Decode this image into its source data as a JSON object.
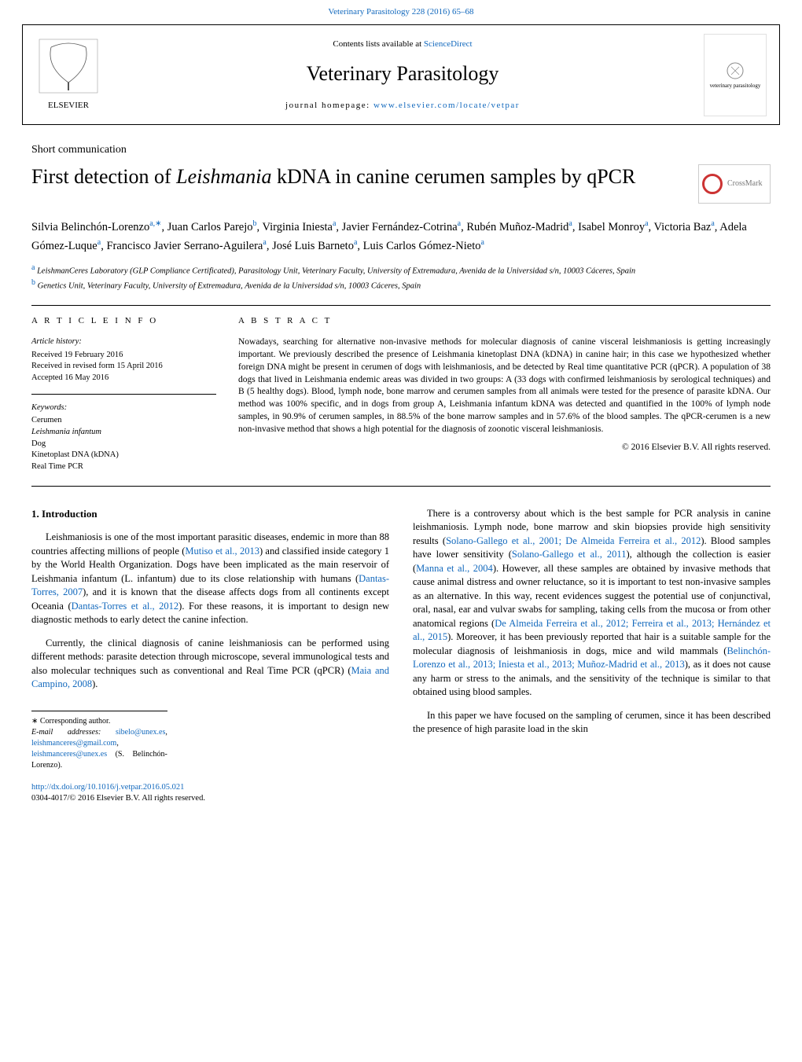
{
  "top_link": "Veterinary Parasitology 228 (2016) 65–68",
  "header": {
    "contents_line_prefix": "Contents lists available at ",
    "contents_line_link": "ScienceDirect",
    "journal_name": "Veterinary Parasitology",
    "homepage_prefix": "journal homepage: ",
    "homepage_url": "www.elsevier.com/locate/vetpar",
    "publisher_name": "ELSEVIER",
    "cover_text": "veterinary parasitology"
  },
  "article": {
    "type_label": "Short communication",
    "title_pre": "First detection of ",
    "title_italic": "Leishmania",
    "title_post": " kDNA in canine cerumen samples by qPCR",
    "crossmark_label": "CrossMark"
  },
  "authors_html": "Silvia Belinchón-Lorenzo<sup class='sup'>a,∗</sup>, Juan Carlos Parejo<sup class='sup'>b</sup>, Virginia Iniesta<sup class='sup'>a</sup>, Javier Fernández-Cotrina<sup class='sup'>a</sup>, Rubén Muñoz-Madrid<sup class='sup'>a</sup>, Isabel Monroy<sup class='sup'>a</sup>, Victoria Baz<sup class='sup'>a</sup>, Adela Gómez-Luque<sup class='sup'>a</sup>, Francisco Javier Serrano-Aguilera<sup class='sup'>a</sup>, José Luis Barneto<sup class='sup'>a</sup>, Luis Carlos Gómez-Nieto<sup class='sup'>a</sup>",
  "affiliations": {
    "a": "LeishmanCeres Laboratory (GLP Compliance Certificated), Parasitology Unit, Veterinary Faculty, University of Extremadura, Avenida de la Universidad s/n, 10003 Cáceres, Spain",
    "b": "Genetics Unit, Veterinary Faculty, University of Extremadura, Avenida de la Universidad s/n, 10003 Cáceres, Spain"
  },
  "article_info": {
    "header": "A R T I C L E   I N F O",
    "history_label": "Article history:",
    "received": "Received 19 February 2016",
    "revised": "Received in revised form 15 April 2016",
    "accepted": "Accepted 16 May 2016",
    "keywords_label": "Keywords:",
    "keywords": [
      "Cerumen",
      "Leishmania infantum",
      "Dog",
      "Kinetoplast DNA (kDNA)",
      "Real Time PCR"
    ]
  },
  "abstract": {
    "header": "A B S T R A C T",
    "text": "Nowadays, searching for alternative non-invasive methods for molecular diagnosis of canine visceral leishmaniosis is getting increasingly important. We previously described the presence of Leishmania kinetoplast DNA (kDNA) in canine hair; in this case we hypothesized whether foreign DNA might be present in cerumen of dogs with leishmaniosis, and be detected by Real time quantitative PCR (qPCR). A population of 38 dogs that lived in Leishmania endemic areas was divided in two groups: A (33 dogs with confirmed leishmaniosis by serological techniques) and B (5 healthy dogs). Blood, lymph node, bone marrow and cerumen samples from all animals were tested for the presence of parasite kDNA. Our method was 100% specific, and in dogs from group A, Leishmania infantum kDNA was detected and quantified in the 100% of lymph node samples, in 90.9% of cerumen samples, in 88.5% of the bone marrow samples and in 57.6% of the blood samples. The qPCR-cerumen is a new non-invasive method that shows a high potential for the diagnosis of zoonotic visceral leishmaniosis.",
    "copyright": "© 2016 Elsevier B.V. All rights reserved."
  },
  "intro": {
    "heading": "1. Introduction",
    "p1_pre": "Leishmaniosis is one of the most important parasitic diseases, endemic in more than 88 countries affecting millions of people (",
    "p1_cite1": "Mutiso et al., 2013",
    "p1_mid1": ") and classified inside category 1 by the World Health Organization. Dogs have been implicated as the main reservoir of Leishmania infantum (L. infantum) due to its close relationship with humans (",
    "p1_cite2": "Dantas-Torres, 2007",
    "p1_mid2": "), and it is known that the disease affects dogs from all continents except Oceania (",
    "p1_cite3": "Dantas-Torres et al., 2012",
    "p1_end": "). For these reasons, it is important to design new diagnostic methods to early detect the canine infection.",
    "p2_pre": "Currently, the clinical diagnosis of canine leishmaniosis can be performed using different methods: parasite detection through microscope, several immunological tests and also molecular techniques such as conventional and Real Time PCR (qPCR) (",
    "p2_cite1": "Maia and Campino, 2008",
    "p2_end": ")."
  },
  "right_col": {
    "p1_pre": "There is a controversy about which is the best sample for PCR analysis in canine leishmaniosis. Lymph node, bone marrow and skin biopsies provide high sensitivity results (",
    "p1_cite1": "Solano-Gallego et al., 2001; De Almeida Ferreira et al., 2012",
    "p1_mid1": "). Blood samples have lower sensitivity (",
    "p1_cite2": "Solano-Gallego et al., 2011",
    "p1_mid2": "), although the collection is easier (",
    "p1_cite3": "Manna et al., 2004",
    "p1_mid3": "). However, all these samples are obtained by invasive methods that cause animal distress and owner reluctance, so it is important to test non-invasive samples as an alternative. In this way, recent evidences suggest the potential use of conjunctival, oral, nasal, ear and vulvar swabs for sampling, taking cells from the mucosa or from other anatomical regions (",
    "p1_cite4": "De Almeida Ferreira et al., 2012; Ferreira et al., 2013; Hernández et al., 2015",
    "p1_mid4": "). Moreover, it has been previously reported that hair is a suitable sample for the molecular diagnosis of leishmaniosis in dogs, mice and wild mammals (",
    "p1_cite5": "Belinchón-Lorenzo et al., 2013; Iniesta et al., 2013; Muñoz-Madrid et al., 2013",
    "p1_end": "), as it does not cause any harm or stress to the animals, and the sensitivity of the technique is similar to that obtained using blood samples.",
    "p2": "In this paper we have focused on the sampling of cerumen, since it has been described the presence of high parasite load in the skin"
  },
  "footnotes": {
    "corresponding": "∗ Corresponding author.",
    "emails_label": "E-mail addresses: ",
    "email1": "sibelo@unex.es",
    "email_sep1": ", ",
    "email2": "leishmanceres@gmail.com",
    "email_sep2": ", ",
    "email3": "leishmanceres@unex.es",
    "author_note": " (S. Belinchón-Lorenzo)."
  },
  "footer": {
    "doi_url": "http://dx.doi.org/10.1016/j.vetpar.2016.05.021",
    "issn_line": "0304-4017/© 2016 Elsevier B.V. All rights reserved."
  },
  "colors": {
    "link": "#1168bd",
    "text": "#000000",
    "border": "#000000"
  }
}
